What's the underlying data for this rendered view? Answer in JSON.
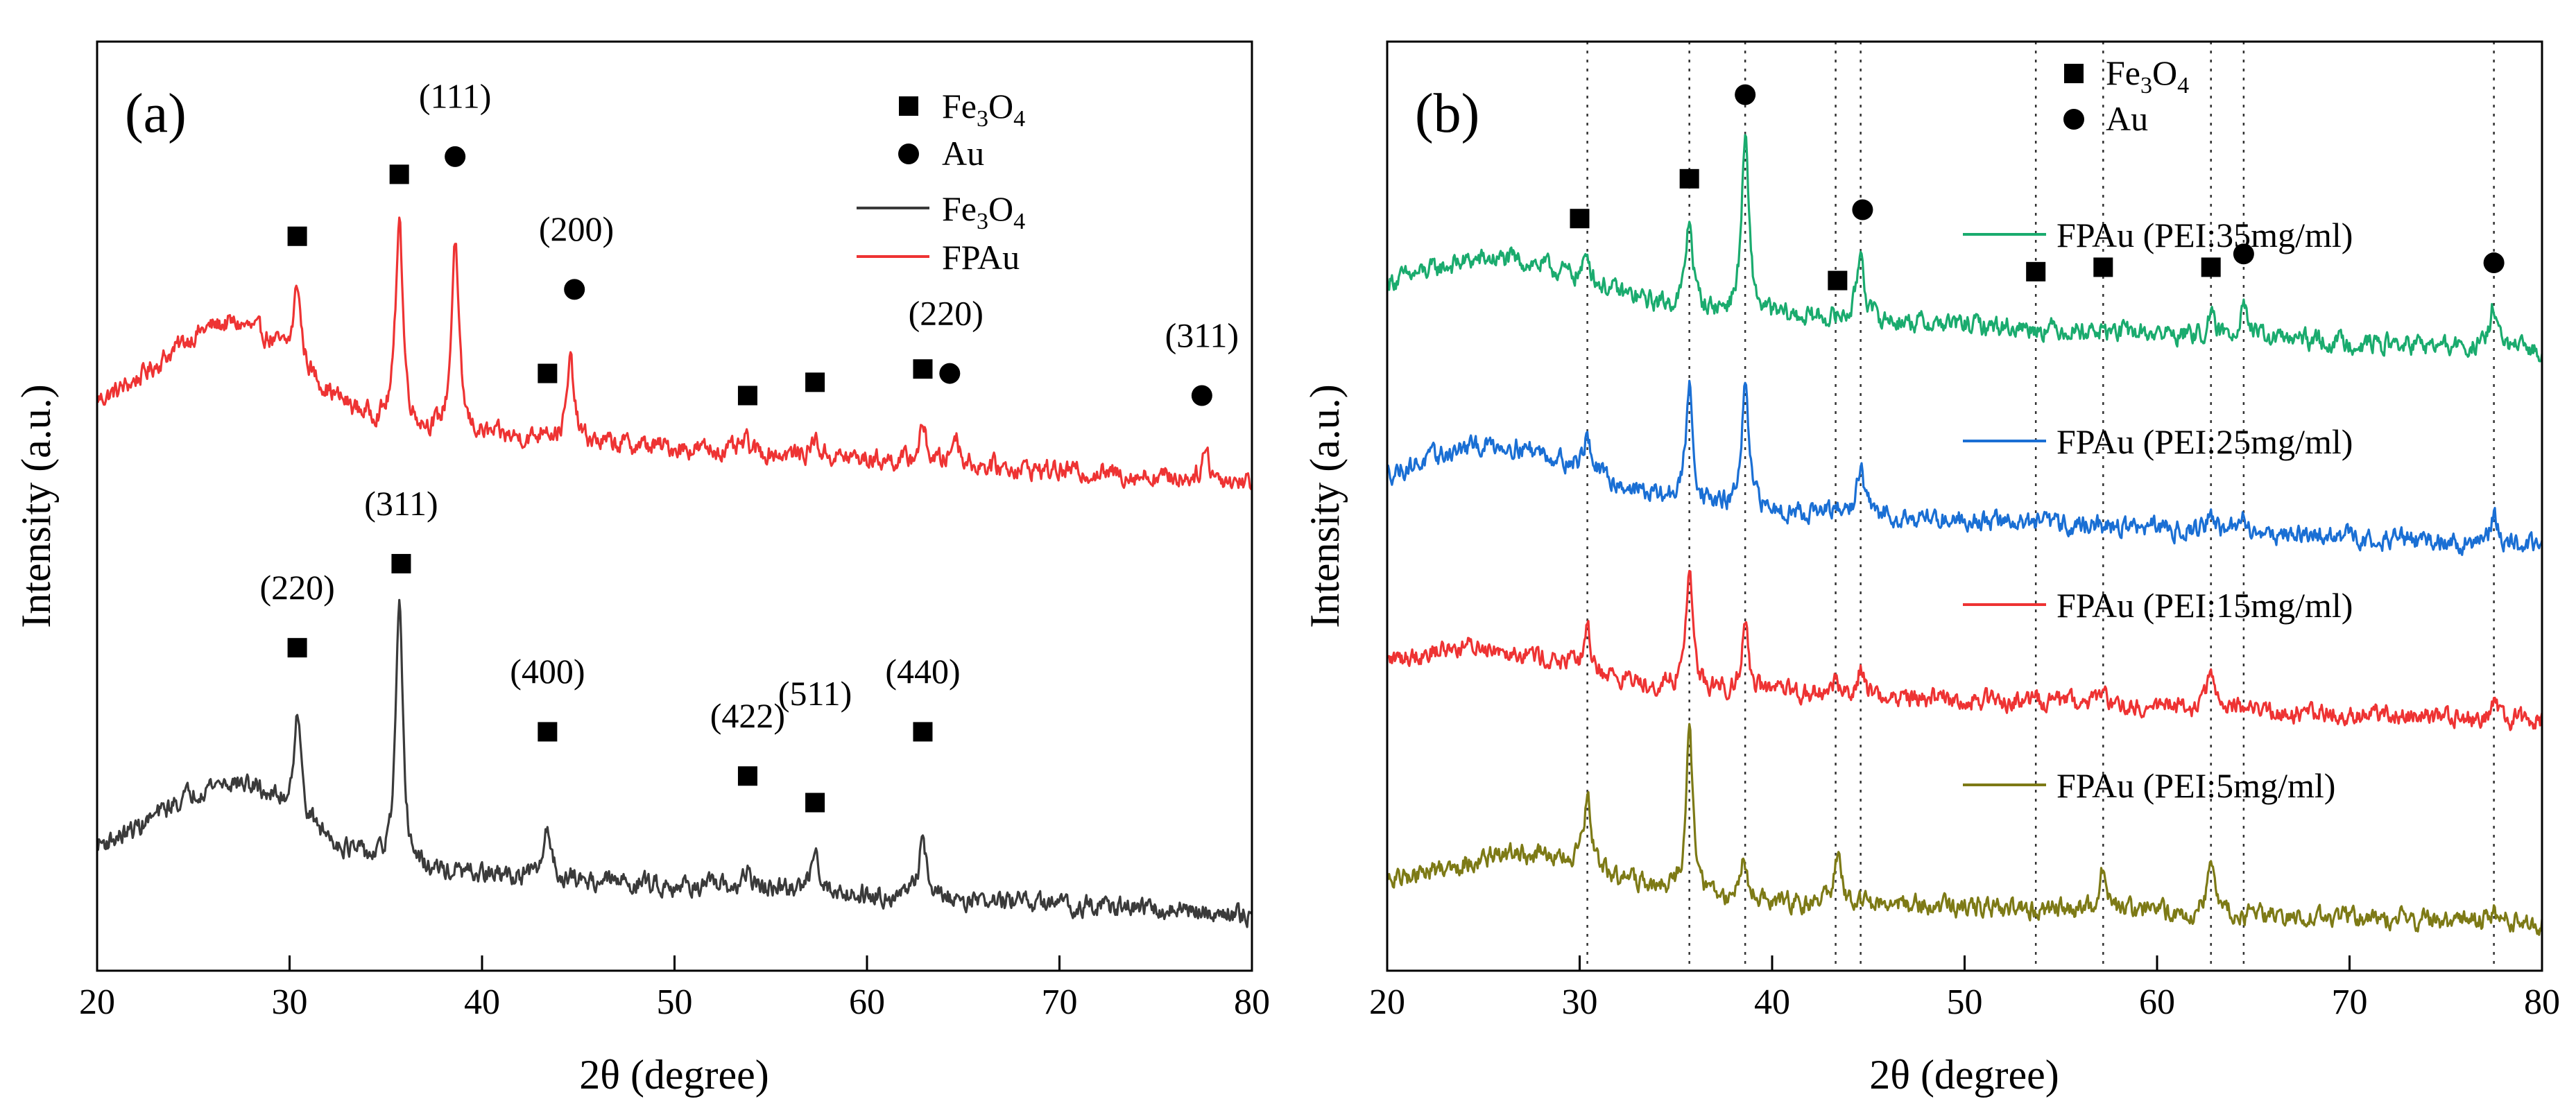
{
  "chart_data": [
    {
      "type": "line",
      "panel_label": "(a)",
      "xlabel": "2θ (degree)",
      "ylabel": "Intensity (a.u.)",
      "xlim": [
        20,
        80
      ],
      "xticks": [
        20,
        30,
        40,
        50,
        60,
        70,
        80
      ],
      "yaxis_values_shown": false,
      "grid": false,
      "marker_legend": [
        {
          "marker": "square",
          "label_main": "Fe",
          "label_sub1": "3",
          "label_mid": "O",
          "label_sub2": "4"
        },
        {
          "marker": "circle",
          "label_main": "Au",
          "label_sub1": "",
          "label_mid": "",
          "label_sub2": ""
        }
      ],
      "line_legend": [
        {
          "color": "#3a3a3a",
          "label_main": "Fe",
          "label_sub1": "3",
          "label_mid": "O",
          "label_sub2": "4"
        },
        {
          "color": "#ee3333",
          "label_main": "FPAu",
          "label_sub1": "",
          "label_mid": "",
          "label_sub2": ""
        }
      ],
      "series": [
        {
          "name": "FPAu",
          "color": "#ee3333",
          "baseline_y": 6.3,
          "slope": -0.013,
          "hump": [
            {
              "center": 27,
              "width": 5,
              "height": 1.1
            }
          ],
          "peaks": [
            {
              "x": 30.4,
              "h": 0.9
            },
            {
              "x": 35.7,
              "h": 2.4
            },
            {
              "x": 38.6,
              "h": 2.2
            },
            {
              "x": 43.3,
              "h": 0.15
            },
            {
              "x": 44.6,
              "h": 0.9
            },
            {
              "x": 53.7,
              "h": 0.12
            },
            {
              "x": 57.3,
              "h": 0.2
            },
            {
              "x": 62.9,
              "h": 0.4
            },
            {
              "x": 64.6,
              "h": 0.35
            },
            {
              "x": 77.6,
              "h": 0.35
            }
          ],
          "markers": [
            {
              "x": 30.4,
              "y": 8.3,
              "shape": "square"
            },
            {
              "x": 35.7,
              "y": 9.0,
              "shape": "square"
            },
            {
              "x": 38.6,
              "y": 9.2,
              "shape": "circle"
            },
            {
              "x": 43.4,
              "y": 6.75,
              "shape": "square"
            },
            {
              "x": 44.8,
              "y": 7.7,
              "shape": "circle"
            },
            {
              "x": 53.8,
              "y": 6.5,
              "shape": "square"
            },
            {
              "x": 57.3,
              "y": 6.65,
              "shape": "square"
            },
            {
              "x": 62.9,
              "y": 6.8,
              "shape": "square"
            },
            {
              "x": 64.3,
              "y": 6.75,
              "shape": "circle"
            },
            {
              "x": 77.4,
              "y": 6.5,
              "shape": "circle"
            }
          ],
          "annotations": [
            {
              "x": 38.6,
              "y": 9.75,
              "text": "(111)"
            },
            {
              "x": 44.9,
              "y": 8.25,
              "text": "(200)"
            },
            {
              "x": 64.1,
              "y": 7.3,
              "text": "(220)"
            },
            {
              "x": 77.4,
              "y": 7.05,
              "text": "(311)"
            }
          ]
        },
        {
          "name": "Fe3O4",
          "color": "#3a3a3a",
          "baseline_y": 1.3,
          "slope": -0.011,
          "hump": [
            {
              "center": 27,
              "width": 5,
              "height": 0.9
            }
          ],
          "peaks": [
            {
              "x": 30.4,
              "h": 1.2
            },
            {
              "x": 35.7,
              "h": 2.9
            },
            {
              "x": 43.4,
              "h": 0.6
            },
            {
              "x": 53.8,
              "h": 0.2
            },
            {
              "x": 57.3,
              "h": 0.55
            },
            {
              "x": 62.9,
              "h": 0.7
            }
          ],
          "markers": [
            {
              "x": 30.4,
              "y": 3.65,
              "shape": "square"
            },
            {
              "x": 35.8,
              "y": 4.6,
              "shape": "square"
            },
            {
              "x": 43.4,
              "y": 2.7,
              "shape": "square"
            },
            {
              "x": 53.8,
              "y": 2.2,
              "shape": "square"
            },
            {
              "x": 57.3,
              "y": 1.9,
              "shape": "square"
            },
            {
              "x": 62.9,
              "y": 2.7,
              "shape": "square"
            }
          ],
          "annotations": [
            {
              "x": 30.4,
              "y": 4.2,
              "text": "(220)"
            },
            {
              "x": 35.8,
              "y": 5.15,
              "text": "(311)"
            },
            {
              "x": 43.4,
              "y": 3.25,
              "text": "(400)"
            },
            {
              "x": 53.8,
              "y": 2.75,
              "text": "(422)"
            },
            {
              "x": 57.3,
              "y": 3.0,
              "text": "(511)"
            },
            {
              "x": 62.9,
              "y": 3.25,
              "text": "(440)"
            }
          ]
        }
      ]
    },
    {
      "type": "line",
      "panel_label": "(b)",
      "xlabel": "2θ (degree)",
      "ylabel": "Intensity (a.u.)",
      "xlim": [
        20,
        80
      ],
      "xticks": [
        20,
        30,
        40,
        50,
        60,
        70,
        80
      ],
      "yaxis_values_shown": false,
      "grid": false,
      "reference_lines_x": [
        30.4,
        35.7,
        38.6,
        43.3,
        44.6,
        53.7,
        57.2,
        62.8,
        64.5,
        77.5
      ],
      "marker_legend": [
        {
          "marker": "square",
          "label_main": "Fe",
          "label_sub1": "3",
          "label_mid": "O",
          "label_sub2": "4"
        },
        {
          "marker": "circle",
          "label_main": "Au",
          "label_sub1": "",
          "label_mid": "",
          "label_sub2": ""
        }
      ],
      "series": [
        {
          "name": "FPAu (PEI:35mg/ml)",
          "color": "#1aab6e",
          "baseline_y": 7.6,
          "slope": -0.01,
          "hump": [
            {
              "center": 26,
              "width": 6,
              "height": 0.5
            }
          ],
          "peaks": [
            {
              "x": 30.4,
              "h": 0.3
            },
            {
              "x": 35.7,
              "h": 1.0
            },
            {
              "x": 38.6,
              "h": 2.0
            },
            {
              "x": 44.6,
              "h": 0.8
            },
            {
              "x": 62.8,
              "h": 0.2
            },
            {
              "x": 64.5,
              "h": 0.45
            },
            {
              "x": 77.5,
              "h": 0.5
            }
          ],
          "markers": [
            {
              "x": 30.0,
              "y": 8.5,
              "shape": "square"
            },
            {
              "x": 35.7,
              "y": 8.95,
              "shape": "square"
            },
            {
              "x": 38.6,
              "y": 9.9,
              "shape": "circle"
            },
            {
              "x": 43.4,
              "y": 7.8,
              "shape": "square"
            },
            {
              "x": 44.7,
              "y": 8.6,
              "shape": "circle"
            },
            {
              "x": 53.7,
              "y": 7.9,
              "shape": "square"
            },
            {
              "x": 57.2,
              "y": 7.95,
              "shape": "square"
            },
            {
              "x": 62.8,
              "y": 7.95,
              "shape": "square"
            },
            {
              "x": 64.5,
              "y": 8.1,
              "shape": "circle"
            },
            {
              "x": 77.5,
              "y": 8.0,
              "shape": "circle"
            }
          ]
        },
        {
          "name": "FPAu (PEI:25mg/ml)",
          "color": "#1a6fd4",
          "baseline_y": 5.4,
          "slope": -0.01,
          "hump": [
            {
              "center": 26,
              "width": 6,
              "height": 0.6
            }
          ],
          "peaks": [
            {
              "x": 30.4,
              "h": 0.4
            },
            {
              "x": 35.7,
              "h": 1.3
            },
            {
              "x": 38.6,
              "h": 1.35
            },
            {
              "x": 44.6,
              "h": 0.55
            },
            {
              "x": 62.8,
              "h": 0.2
            },
            {
              "x": 64.5,
              "h": 0.15
            },
            {
              "x": 77.5,
              "h": 0.3
            }
          ]
        },
        {
          "name": "FPAu (PEI:15mg/ml)",
          "color": "#ee3333",
          "baseline_y": 3.3,
          "slope": -0.008,
          "hump": [
            {
              "center": 25,
              "width": 6,
              "height": 0.4
            }
          ],
          "peaks": [
            {
              "x": 30.4,
              "h": 0.45
            },
            {
              "x": 35.7,
              "h": 1.35
            },
            {
              "x": 38.6,
              "h": 0.75
            },
            {
              "x": 43.3,
              "h": 0.15
            },
            {
              "x": 44.6,
              "h": 0.3
            },
            {
              "x": 53.7,
              "h": 0.1
            },
            {
              "x": 57.2,
              "h": 0.2
            },
            {
              "x": 62.8,
              "h": 0.45
            },
            {
              "x": 77.5,
              "h": 0.15
            }
          ]
        },
        {
          "name": "FPAu (PEI:5mg/ml)",
          "color": "#7d7a16",
          "baseline_y": 0.9,
          "slope": -0.006,
          "hump": [
            {
              "center": 27,
              "width": 6,
              "height": 0.45
            }
          ],
          "peaks": [
            {
              "x": 30.4,
              "h": 0.8
            },
            {
              "x": 35.7,
              "h": 1.8
            },
            {
              "x": 38.5,
              "h": 0.45
            },
            {
              "x": 43.4,
              "h": 0.5
            },
            {
              "x": 57.2,
              "h": 0.5
            },
            {
              "x": 62.8,
              "h": 0.65
            },
            {
              "x": 77.5,
              "h": 0.1
            }
          ]
        }
      ]
    }
  ]
}
